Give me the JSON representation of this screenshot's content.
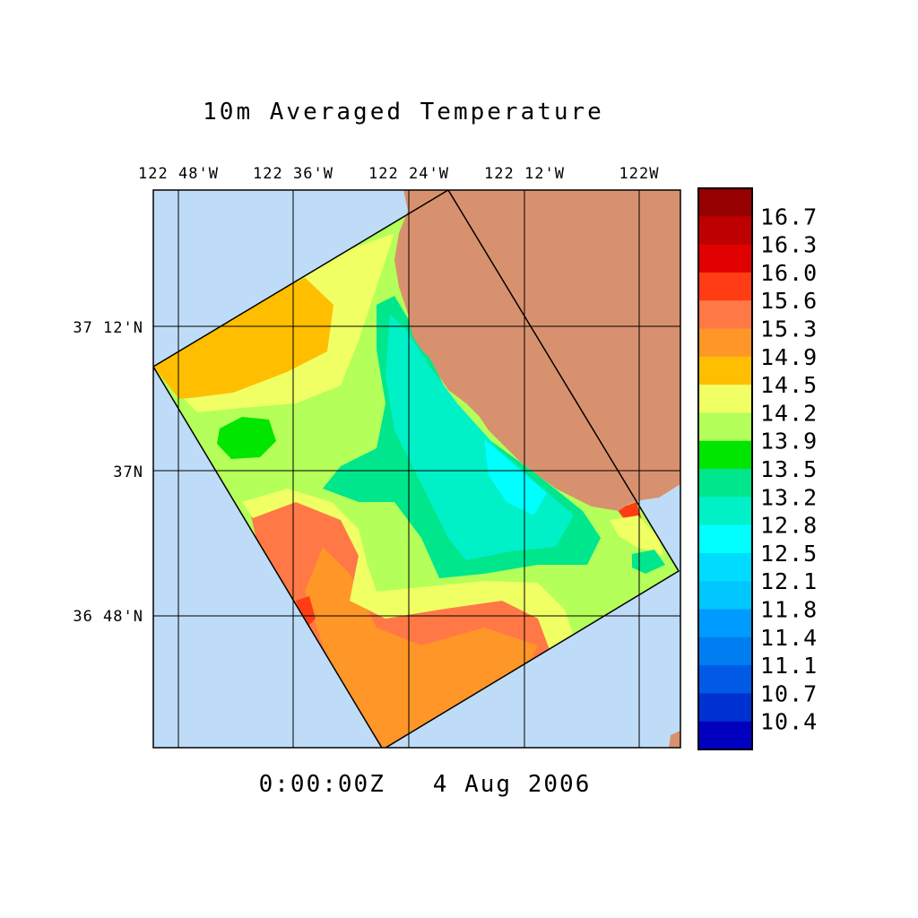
{
  "title": "10m Averaged Temperature",
  "timestamp": "0:00:00Z   4 Aug 2006",
  "lon_labels": [
    "122 48'W",
    "122 36'W",
    "122 24'W",
    "122 12'W",
    "122W"
  ],
  "lat_labels": [
    "37 12'N",
    "37N",
    "36 48'N"
  ],
  "colorbar": {
    "labels": [
      "16.7",
      "16.3",
      "16.0",
      "15.6",
      "15.3",
      "14.9",
      "14.5",
      "14.2",
      "13.9",
      "13.5",
      "13.2",
      "12.8",
      "12.5",
      "12.1",
      "11.8",
      "11.4",
      "11.1",
      "10.7",
      "10.4"
    ],
    "colors": [
      "#960000",
      "#be0000",
      "#e10000",
      "#ff3c14",
      "#ff7846",
      "#ff9628",
      "#ffbe00",
      "#f0ff64",
      "#b4ff5a",
      "#00e600",
      "#00e68c",
      "#00f0c8",
      "#00ffff",
      "#00dcff",
      "#00c8ff",
      "#009bff",
      "#007df0",
      "#005ae6",
      "#0032d2",
      "#0000be"
    ]
  },
  "colors": {
    "ocean": "#bedcf8",
    "land": "#d8916e",
    "grid": "#000000"
  }
}
